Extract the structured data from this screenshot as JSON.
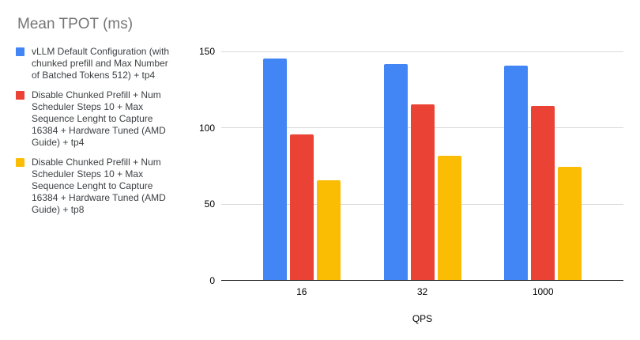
{
  "title": "Mean TPOT (ms)",
  "chart_data": {
    "type": "bar",
    "title": "Mean TPOT (ms)",
    "categories": [
      "16",
      "32",
      "1000"
    ],
    "series": [
      {
        "name": "vLLM Default Configuration (with chunked prefill and Max Number of Batched Tokens 512) + tp4",
        "color": "#4285F4",
        "values": [
          145,
          141,
          140
        ]
      },
      {
        "name": "Disable Chunked Prefill + Num Scheduler Steps 10 + Max Sequence Lenght to Capture 16384 + Hardware Tuned (AMD Guide) + tp4",
        "color": "#EA4335",
        "values": [
          95,
          115,
          114
        ]
      },
      {
        "name": "Disable Chunked Prefill + Num Scheduler Steps 10 + Max Sequence Lenght to Capture 16384 + Hardware Tuned (AMD Guide) + tp8",
        "color": "#FBBC04",
        "values": [
          65,
          81,
          74
        ]
      }
    ],
    "xlabel": "QPS",
    "ylabel": "",
    "ylim": [
      0,
      150
    ],
    "yticks": [
      0,
      50,
      100,
      150
    ],
    "grid": true,
    "legend_position": "left",
    "colors": {
      "background": "#ffffff",
      "gridline": "#d9d9d9",
      "axis_line": "#000000",
      "title_text": "#757575",
      "tick_text": "#000000",
      "legend_text": "#3c4043"
    }
  }
}
